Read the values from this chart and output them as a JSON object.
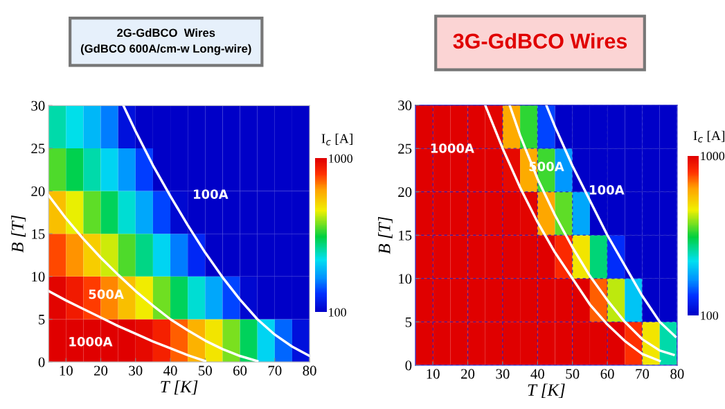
{
  "chart_data": [
    {
      "type": "heatmap",
      "title": "2G-GdBCO  Wires\n(GdBCO 600A/cm-w Long-wire)",
      "xlabel": "T [K]",
      "ylabel": "B [T]",
      "clabel": "I$_{c}$ [A]",
      "x": [
        7.5,
        12.5,
        17.5,
        22.5,
        27.5,
        32.5,
        37.5,
        42.5,
        47.5,
        52.5,
        57.5,
        62.5,
        67.5,
        72.5,
        77.5
      ],
      "y": [
        27.5,
        22.5,
        17.5,
        12.5,
        7.5,
        2.5
      ],
      "cells": [
        [
          460,
          410,
          350,
          280,
          140,
          100,
          100,
          100,
          100,
          100,
          100,
          100,
          100,
          100,
          100
        ],
        [
          590,
          530,
          460,
          390,
          310,
          220,
          100,
          100,
          100,
          100,
          100,
          100,
          100,
          100,
          100
        ],
        [
          770,
          690,
          600,
          520,
          430,
          330,
          230,
          120,
          100,
          100,
          100,
          100,
          100,
          100,
          100
        ],
        [
          890,
          830,
          750,
          670,
          590,
          490,
          390,
          280,
          190,
          100,
          100,
          100,
          100,
          100,
          100
        ],
        [
          990,
          950,
          900,
          840,
          770,
          700,
          610,
          520,
          430,
          330,
          230,
          120,
          100,
          100,
          100
        ],
        [
          1000,
          1000,
          1000,
          1000,
          1000,
          980,
          940,
          870,
          790,
          710,
          620,
          520,
          390,
          260,
          140
        ]
      ],
      "clim": [
        100,
        1000
      ],
      "cticks": [
        100,
        1000
      ],
      "xlim": [
        5,
        80
      ],
      "ylim": [
        0,
        30
      ],
      "xticks": [
        10,
        20,
        30,
        40,
        50,
        60,
        70,
        80
      ],
      "yticks": [
        0,
        5,
        10,
        15,
        20,
        25,
        30
      ],
      "grid": false,
      "series": [
        {
          "type": "line",
          "color": "#ffffff",
          "x": [
            5,
            10,
            15,
            20,
            25,
            30,
            35,
            40,
            45,
            50
          ],
          "values": [
            8.3,
            7.2,
            6.2,
            5.2,
            4.2,
            3.3,
            2.4,
            1.6,
            0.8,
            0.1
          ]
        },
        {
          "type": "line",
          "color": "#ffffff",
          "x": [
            5,
            10,
            15,
            20,
            25,
            30,
            35,
            40,
            45,
            50,
            55,
            60,
            65
          ],
          "values": [
            19.5,
            16.8,
            14.4,
            12.2,
            10.2,
            8.3,
            6.6,
            5,
            3.7,
            2.5,
            1.5,
            0.7,
            0.1
          ]
        },
        {
          "type": "line",
          "color": "#ffffff",
          "x": [
            26.5,
            30,
            35,
            40,
            45,
            50,
            55,
            60,
            65,
            70,
            75,
            80
          ],
          "values": [
            30,
            27,
            23,
            19.4,
            16,
            12.8,
            9.9,
            7.3,
            5,
            3.2,
            1.8,
            0.7
          ]
        }
      ],
      "annotations": [
        "1000A",
        "500A",
        "100A"
      ]
    },
    {
      "type": "heatmap",
      "title": "3G-GdBCO Wires",
      "xlabel": "T [K]",
      "ylabel": "B [T]",
      "clabel": "I$_{c}$ [A]",
      "x": [
        7.5,
        12.5,
        17.5,
        22.5,
        27.5,
        32.5,
        37.5,
        42.5,
        47.5,
        52.5,
        57.5,
        62.5,
        67.5,
        72.5,
        77.5
      ],
      "y": [
        27.5,
        22.5,
        17.5,
        12.5,
        7.5,
        2.5
      ],
      "cells": [
        [
          1000,
          1000,
          1000,
          1000,
          990,
          800,
          570,
          230,
          100,
          100,
          100,
          100,
          100,
          100,
          100
        ],
        [
          1000,
          1000,
          1000,
          1000,
          1000,
          980,
          800,
          580,
          310,
          100,
          100,
          100,
          100,
          100,
          100
        ],
        [
          1000,
          1000,
          1000,
          1000,
          1000,
          1000,
          990,
          810,
          600,
          330,
          100,
          100,
          100,
          100,
          100
        ],
        [
          1000,
          1000,
          1000,
          1000,
          1000,
          1000,
          1000,
          1000,
          920,
          710,
          500,
          200,
          100,
          100,
          100
        ],
        [
          1000,
          1000,
          1000,
          1000,
          1000,
          1000,
          1000,
          1000,
          1000,
          1000,
          870,
          660,
          370,
          100,
          100
        ],
        [
          1000,
          1000,
          1000,
          1000,
          1000,
          1000,
          1000,
          1000,
          1000,
          1000,
          1000,
          1000,
          910,
          710,
          460
        ]
      ],
      "clim": [
        100,
        1000
      ],
      "cticks": [
        100,
        1000
      ],
      "xlim": [
        5,
        80
      ],
      "ylim": [
        0,
        30
      ],
      "xticks": [
        10,
        20,
        30,
        40,
        50,
        60,
        70,
        80
      ],
      "yticks": [
        0,
        5,
        10,
        15,
        20,
        25,
        30
      ],
      "grid": true,
      "series": [
        {
          "type": "line",
          "color": "#ffffff",
          "x": [
            25,
            30,
            35,
            40,
            45,
            50,
            55,
            60,
            65,
            70,
            75
          ],
          "values": [
            30,
            25,
            20.5,
            16.5,
            13,
            10,
            7,
            4.7,
            2.8,
            1.3,
            0.5
          ]
        },
        {
          "type": "line",
          "color": "#ffffff",
          "x": [
            32,
            35,
            40,
            45,
            50,
            55,
            60,
            65,
            70,
            75,
            79
          ],
          "values": [
            30,
            26.5,
            21.5,
            17.3,
            13.6,
            10.3,
            7.5,
            5,
            3,
            1.7,
            1.2
          ]
        },
        {
          "type": "line",
          "color": "#ffffff",
          "x": [
            42.5,
            45,
            50,
            55,
            60,
            65,
            70,
            75,
            79.5
          ],
          "values": [
            30,
            27.5,
            23,
            19,
            15,
            11.5,
            8,
            5,
            3.3
          ]
        }
      ],
      "annotations": [
        "1000A",
        "500A",
        "100A"
      ]
    }
  ]
}
